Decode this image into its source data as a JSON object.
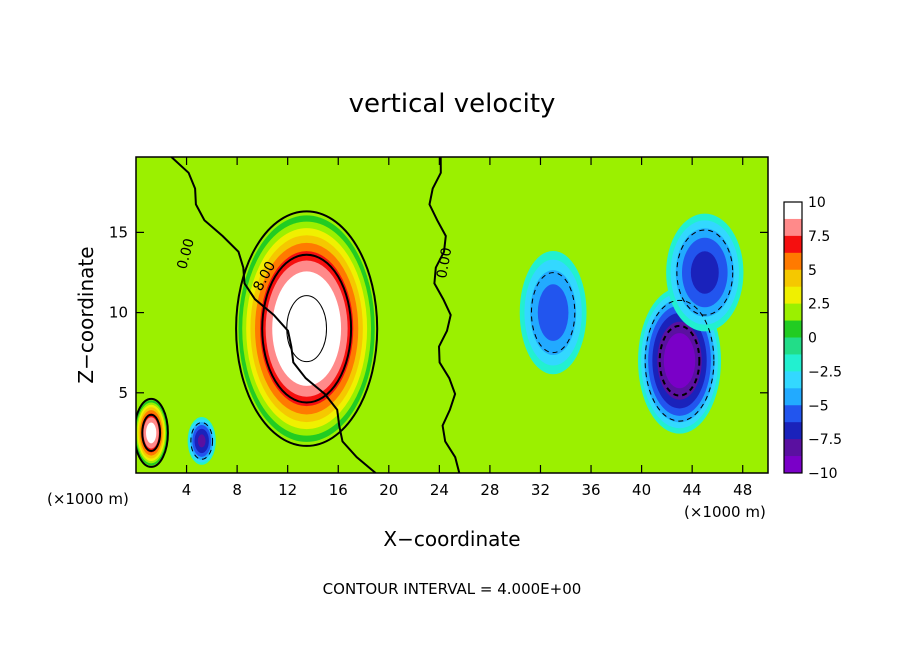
{
  "chart_data": {
    "type": "heatmap",
    "title": "vertical velocity",
    "xlabel": "X−coordinate",
    "ylabel": "Z−coordinate",
    "x_unit_left": "(×1000 m)",
    "x_unit_right": "(×1000 m)",
    "footer": "CONTOUR INTERVAL = 4.000E+00",
    "xlim": [
      0,
      50
    ],
    "ylim": [
      0,
      19.7
    ],
    "x_ticks": [
      4,
      8,
      12,
      16,
      20,
      24,
      28,
      32,
      36,
      40,
      44,
      48
    ],
    "y_ticks": [
      5,
      10,
      15
    ],
    "grid": false,
    "colorbar": {
      "placement": "right",
      "range": [
        -10,
        10
      ],
      "tick_values": [
        10,
        7.5,
        5,
        2.5,
        0,
        -2.5,
        -5,
        -7.5,
        -10
      ],
      "tick_labels": [
        "10",
        "7.5",
        "5",
        "2.5",
        "0",
        "−2.5",
        "−5",
        "−7.5",
        "−10"
      ],
      "colors": [
        "#ffffff",
        "#ff8a8a",
        "#f50f0f",
        "#ff7a00",
        "#f5c800",
        "#f0f000",
        "#9bf000",
        "#22cc22",
        "#22dd88",
        "#22f0d0",
        "#33d8ff",
        "#22aaff",
        "#2255ee",
        "#1a22bb",
        "#5a10a0",
        "#7a00c8"
      ]
    },
    "contour_labels": [
      "0.00",
      "8.00",
      "0.00"
    ],
    "features": [
      {
        "x": 13.5,
        "z": 9.0,
        "w_peak": 13,
        "sx": 4.2,
        "sz": 5.5
      },
      {
        "x": 1.2,
        "z": 2.5,
        "w_peak": 11,
        "sx": 1.0,
        "sz": 1.6
      },
      {
        "x": 5.2,
        "z": 2.0,
        "w_peak": -8,
        "sx": 0.9,
        "sz": 1.2
      },
      {
        "x": 43.0,
        "z": 7.0,
        "w_peak": -10,
        "sx": 2.6,
        "sz": 3.6
      },
      {
        "x": 33.0,
        "z": 10.0,
        "w_peak": -6,
        "sx": 2.2,
        "sz": 3.2
      },
      {
        "x": 45.0,
        "z": 12.5,
        "w_peak": -7,
        "sx": 2.5,
        "sz": 3.0
      }
    ]
  }
}
